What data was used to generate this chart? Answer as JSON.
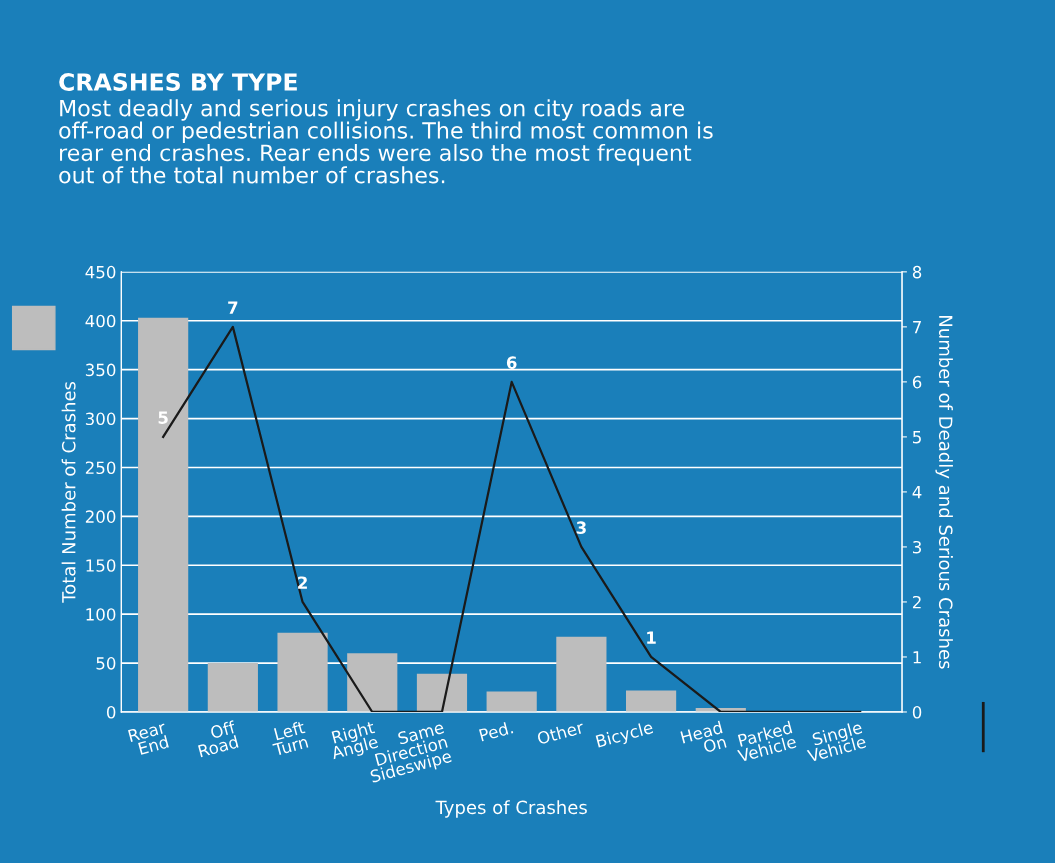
{
  "chart_data": {
    "type": "bar",
    "title": "CRASHES BY TYPE",
    "subtitle": "Most deadly and serious injury crashes on city roads are\noff-road or pedestrian collisions. The third most common is\nrear end crashes. Rear ends were also the most frequent\nout of the total number of crashes.",
    "xlabel": "Types of Crashes",
    "ylabel": "Total Number of Crashes",
    "y2label": "Number of Deadly and Serious Crashes",
    "categories": [
      "Rear\nEnd",
      "Off\nRoad",
      "Left\nTurn",
      "Right\nAngle",
      "Same\nDirection\nSideswipe",
      "Ped.",
      "Other",
      "Bicycle",
      "Head\nOn",
      "Parked\nVehicle",
      "Single\nVehicle"
    ],
    "series": [
      {
        "color": "#bdbdbd",
        "values": [
          403,
          50,
          81,
          60,
          39,
          21,
          77,
          22,
          4,
          0,
          0
        ]
      },
      {
        "type": "line",
        "axis": "y2",
        "color": "#1a1a1a",
        "values": [
          5,
          7,
          2,
          0,
          0,
          6,
          3,
          1,
          0,
          0,
          0
        ],
        "value_labels": [
          "5",
          "7",
          "2",
          null,
          null,
          "6",
          "3",
          "1",
          null,
          null,
          null
        ]
      }
    ],
    "ylim": [
      0,
      450
    ],
    "yticks": [
      0,
      50,
      100,
      150,
      200,
      250,
      300,
      350,
      400,
      450
    ],
    "y2lim": [
      0,
      8
    ],
    "y2ticks": [
      0,
      1,
      2,
      3,
      4,
      5,
      6,
      7,
      8
    ],
    "grid": "y",
    "marker": "none",
    "line_style": "solid",
    "legend": false
  }
}
